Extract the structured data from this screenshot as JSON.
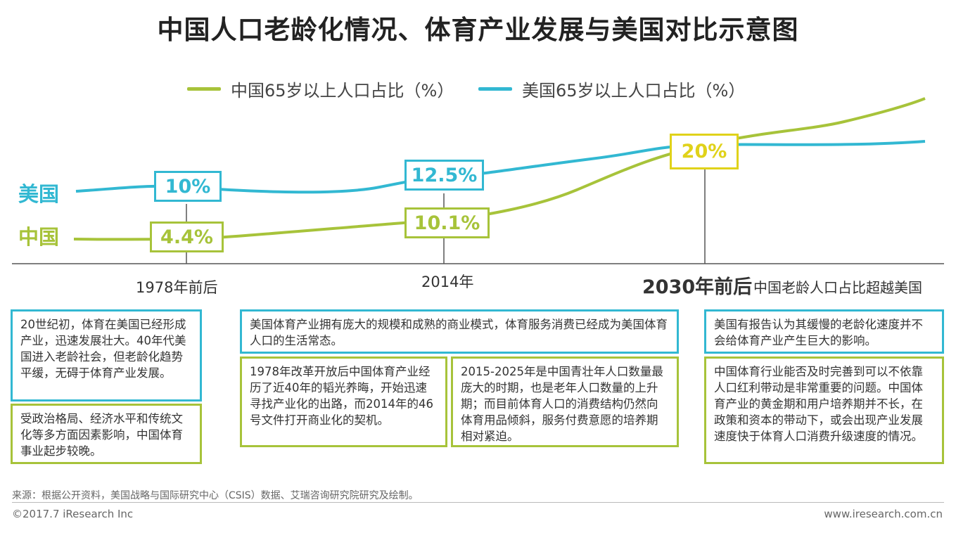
{
  "title": "中国人口老龄化情况、体育产业发展与美国对比示意图",
  "legend": [
    {
      "label": "中国65岁以上人口占比（%）",
      "color": "#a7c33a"
    },
    {
      "label": "美国65岁以上人口占比（%）",
      "color": "#32b8d2"
    }
  ],
  "series_names": {
    "us": "美国",
    "cn": "中国"
  },
  "chart_data": {
    "type": "line",
    "x": [
      "1978年前后",
      "2014年",
      "2030年前后"
    ],
    "x_annotation": "中国老龄人口占比超越美国",
    "series": [
      {
        "name": "中国65岁以上人口占比（%）",
        "values": [
          4.4,
          10.1,
          20
        ],
        "labels": [
          "4.4%",
          "10.1%",
          "20%"
        ],
        "color": "#a7c33a"
      },
      {
        "name": "美国65岁以上人口占比（%）",
        "values": [
          10,
          12.5,
          20
        ],
        "labels": [
          "10%",
          "12.5%",
          "20%"
        ],
        "color": "#32b8d2"
      }
    ],
    "crossover_label": "20%",
    "crossover_color": "#e0d21a"
  },
  "notes": {
    "us_1978": "20世纪初，体育在美国已经形成产业，迅速发展壮大。40年代美国进入老龄社会，但老龄化趋势平缓，无碍于体育产业发展。",
    "cn_1978": "受政治格局、经济水平和传统文化等多方面因素影响，中国体育事业起步较晚。",
    "us_2014": "美国体育产业拥有庞大的规模和成熟的商业模式，体育服务消费已经成为美国体育人口的生活常态。",
    "cn_2014_a": "1978年改革开放后中国体育产业经历了近40年的韬光养晦，开始迅速寻找产业化的出路，而2014年的46号文件打开商业化的契机。",
    "cn_2014_b": "2015-2025年是中国青壮年人口数量最庞大的时期，也是老年人口数量的上升期；而目前体育人口的消费结构仍然向体育用品倾斜，服务付费意愿的培养期相对紧迫。",
    "us_2030": "美国有报告认为其缓慢的老龄化速度并不会给体育产业产生巨大的影响。",
    "cn_2030": "中国体育行业能否及时完善到可以不依靠人口红利带动是非常重要的问题。中国体育产业的黄金期和用户培养期并不长，在政策和资本的带动下，或会出现产业发展速度快于体育人口消费升级速度的情况。"
  },
  "footer": {
    "source": "来源：根据公开资料，美国战略与国际研究中心（CSIS）数据、艾瑞咨询研究院研究及绘制。",
    "copyright": "©2017.7 iResearch Inc",
    "site": "www.iresearch.com.cn"
  }
}
